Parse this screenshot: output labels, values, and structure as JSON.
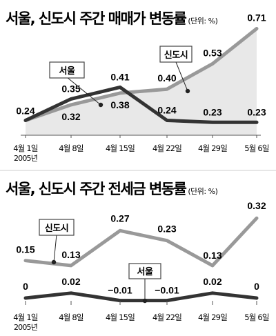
{
  "chart_data": [
    {
      "type": "line",
      "title": "서울, 신도시 주간 매매가 변동률",
      "unit": "(단위: %)",
      "categories": [
        "4월 1일",
        "4월 8일",
        "4월 15일",
        "4월 22일",
        "4월 29일",
        "5월 6일"
      ],
      "year_label": "2005년",
      "series": [
        {
          "name": "신도시",
          "values": [
            0.24,
            0.32,
            0.38,
            0.4,
            0.53,
            0.71
          ],
          "labels": [
            "0.24",
            "0.32",
            "0.38",
            "0.40",
            "0.53",
            "0.71"
          ],
          "color": "#999999"
        },
        {
          "name": "서울",
          "values": [
            0.24,
            0.35,
            0.41,
            0.24,
            0.23,
            0.23
          ],
          "labels": [
            "",
            "0.35",
            "0.41",
            "0.24",
            "0.23",
            "0.23"
          ],
          "color": "#333333"
        }
      ],
      "area_fill": true,
      "grid": false
    },
    {
      "type": "line",
      "title": "서울, 신도시 주간 전세금 변동률",
      "unit": "(단위: %)",
      "categories": [
        "4월 1일",
        "4월 8일",
        "4월 15일",
        "4월 22일",
        "4월 29일",
        "5월 6일"
      ],
      "year_label": "2005년",
      "series": [
        {
          "name": "신도시",
          "values": [
            0.15,
            0.13,
            0.27,
            0.23,
            0.13,
            0.32
          ],
          "labels": [
            "0.15",
            "0.13",
            "0.27",
            "0.23",
            "0.13",
            "0.32"
          ],
          "color": "#999999"
        },
        {
          "name": "서울",
          "values": [
            0,
            0.02,
            -0.01,
            -0.01,
            0.02,
            0
          ],
          "labels": [
            "0",
            "0.02",
            "−0.01",
            "−0.01",
            "0.02",
            "0"
          ],
          "color": "#333333"
        }
      ],
      "grid": false
    }
  ],
  "colors": {
    "background": "#ffffff",
    "area": "#e8e8e8",
    "axis": "#555555"
  }
}
